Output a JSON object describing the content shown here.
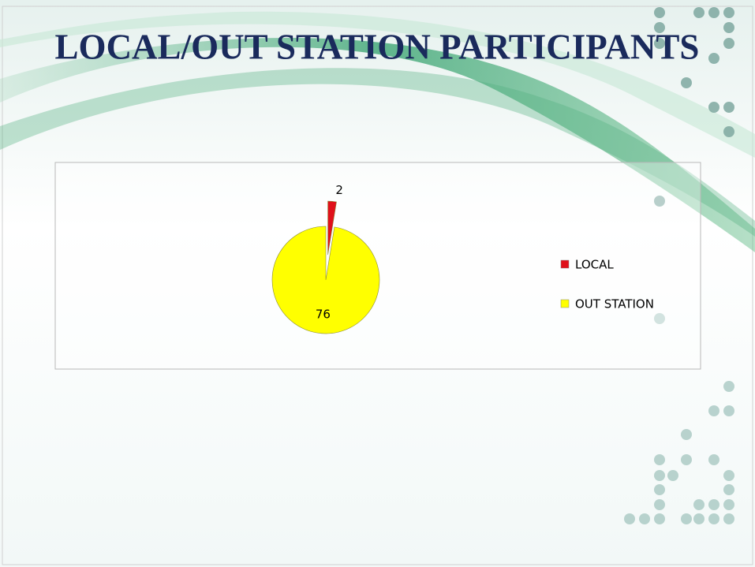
{
  "chart_data": {
    "type": "pie",
    "title": "LOCAL/OUT STATION PARTICIPANTS",
    "categories": [
      "LOCAL",
      "OUT STATION"
    ],
    "values": [
      2,
      76
    ],
    "colors": [
      "#e0101a",
      "#ffff00"
    ],
    "legend": "right",
    "exploded": [
      true,
      false
    ]
  }
}
